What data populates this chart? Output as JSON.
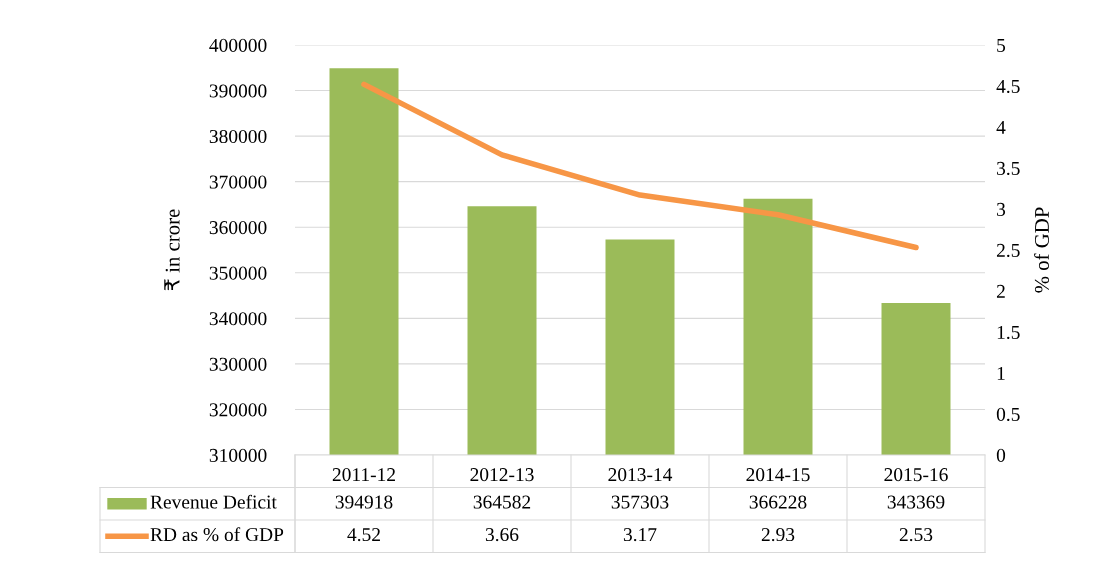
{
  "chart_data": {
    "type": "bar",
    "categories": [
      "2011-12",
      "2012-13",
      "2013-14",
      "2014-15",
      "2015-16"
    ],
    "series": [
      {
        "name": "Revenue Deficit",
        "color": "#9bbb59",
        "values": [
          394918,
          364582,
          357303,
          366228,
          343369
        ]
      },
      {
        "name": "RD as % of GDP",
        "type": "line",
        "axis": "y2",
        "color": "#f79646",
        "values": [
          4.52,
          3.66,
          3.17,
          2.93,
          2.53
        ]
      }
    ],
    "ylabel": "₹ in crore",
    "y2label": "% of GDP",
    "ylim": [
      310000,
      400000
    ],
    "yticks": [
      310000,
      320000,
      330000,
      340000,
      350000,
      360000,
      370000,
      380000,
      390000,
      400000
    ],
    "y2lim": [
      0,
      5
    ],
    "y2ticks": [
      0,
      0.5,
      1,
      1.5,
      2,
      2.5,
      3,
      3.5,
      4,
      4.5,
      5
    ],
    "grid": "y",
    "legend": "bottom",
    "data_labels": true,
    "marker": "none",
    "line_style": "solid"
  }
}
